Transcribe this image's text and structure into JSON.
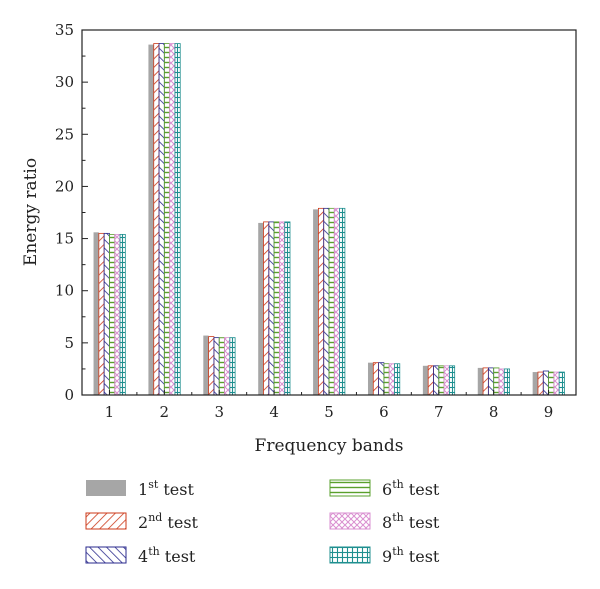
{
  "chart_data": {
    "type": "bar",
    "xlabel": "Frequency bands",
    "ylabel": "Energy ratio",
    "ylim": [
      0,
      35
    ],
    "yticks": [
      0,
      5,
      10,
      15,
      20,
      25,
      30,
      35
    ],
    "categories": [
      "1",
      "2",
      "3",
      "4",
      "5",
      "6",
      "7",
      "8",
      "9"
    ],
    "series": [
      {
        "name_base": "1",
        "name_sup": "st",
        "name_rest": " test",
        "pattern": "solid",
        "color": "#a6a6a6",
        "values": [
          15.6,
          33.6,
          5.7,
          16.5,
          17.8,
          3.1,
          2.8,
          2.6,
          2.2
        ]
      },
      {
        "name_base": "2",
        "name_sup": "nd",
        "name_rest": " test",
        "pattern": "diag-up",
        "color": "#cc3a1a",
        "values": [
          15.5,
          33.7,
          5.6,
          16.6,
          17.9,
          3.1,
          2.8,
          2.6,
          2.2
        ]
      },
      {
        "name_base": "4",
        "name_sup": "th",
        "name_rest": " test",
        "pattern": "diag-down",
        "color": "#2a2a8c",
        "values": [
          15.5,
          33.7,
          5.5,
          16.6,
          17.9,
          3.1,
          2.8,
          2.6,
          2.3
        ]
      },
      {
        "name_base": "6",
        "name_sup": "th",
        "name_rest": " test",
        "pattern": "horizontal",
        "color": "#5aa02c",
        "values": [
          15.4,
          33.7,
          5.5,
          16.6,
          17.9,
          3.0,
          2.8,
          2.6,
          2.2
        ]
      },
      {
        "name_base": "8",
        "name_sup": "th",
        "name_rest": " test",
        "pattern": "crosshatch",
        "color": "#d98fd0",
        "values": [
          15.4,
          33.7,
          5.5,
          16.6,
          17.9,
          3.0,
          2.8,
          2.5,
          2.2
        ]
      },
      {
        "name_base": "9",
        "name_sup": "th",
        "name_rest": " test",
        "pattern": "grid",
        "color": "#1f8f8f",
        "values": [
          15.4,
          33.7,
          5.5,
          16.6,
          17.9,
          3.0,
          2.8,
          2.5,
          2.2
        ]
      }
    ],
    "legend_placement": "bottom",
    "grid": false
  }
}
